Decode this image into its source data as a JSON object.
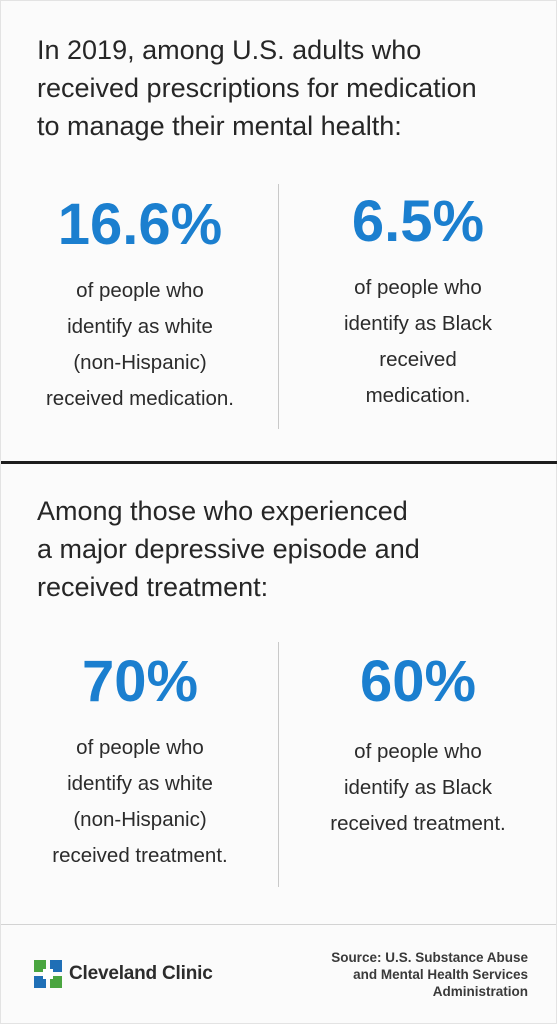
{
  "section1": {
    "heading": [
      "In 2019, among U.S. adults who",
      "received prescriptions for medication",
      "to manage their mental health:"
    ],
    "stats": [
      {
        "value": "16.6%",
        "desc": [
          "of people who",
          "identify as white",
          "(non-Hispanic)",
          "received medication."
        ]
      },
      {
        "value": "6.5%",
        "desc": [
          "of people who",
          "identify as Black",
          "received",
          "medication."
        ]
      }
    ]
  },
  "section2": {
    "heading": [
      "Among those who experienced",
      "a major depressive episode and",
      "received treatment:"
    ],
    "stats": [
      {
        "value": "70%",
        "desc": [
          "of people who",
          "identify as white",
          "(non-Hispanic)",
          "received treatment."
        ]
      },
      {
        "value": "60%",
        "desc": [
          "of people who",
          "identify as Black",
          "received treatment."
        ]
      }
    ]
  },
  "footer": {
    "logo_text": "Cleveland Clinic",
    "source": [
      "Source: U.S. Substance Abuse",
      "and Mental Health Services",
      "Administration"
    ]
  },
  "colors": {
    "accent": "#1b7fcf",
    "logo_green": "#4aa540",
    "logo_blue": "#1f6fb6"
  }
}
